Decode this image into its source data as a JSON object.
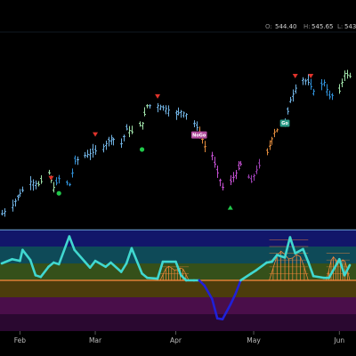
{
  "colors": {
    "background": "#000000",
    "separator": "#1e2a36",
    "bar_up_strong": "#2f8fd6",
    "bar_up": "#6fb0e0",
    "bar_neutral": "#9fe0a8",
    "bar_hot": "#e08a3c",
    "bar_down": "#9a3fb0",
    "bar_down_strong": "#c24fd0",
    "signal_sell": "#e0332b",
    "signal_buy": "#20c84a",
    "tag_nogo": "#b04a9c",
    "tag_go": "#2a9a86",
    "osc_line": "#40d8d0",
    "osc_line_low": "#2020d8",
    "osc_zero": "#ff8a3c",
    "osc_cloud": "#ff8a3c",
    "osc_bands": [
      "#12166a",
      "#0e4a58",
      "#35501a",
      "#4c3c0c",
      "#4a0e4a",
      "#2a0830"
    ]
  },
  "ohlc": {
    "open_label": "O:",
    "open": "544.40",
    "high_label": "H:",
    "high": "545.65",
    "low_label": "L:",
    "low": "543"
  },
  "chart_data": [
    {
      "type": "ohlc",
      "x_axis": {
        "type": "date",
        "start": "2024-01-25",
        "end": "2024-06-07",
        "tick_labels": [
          "Feb",
          "Mar",
          "Apr",
          "May",
          "Jun"
        ],
        "tick_dates": [
          "2024-02-01",
          "2024-03-01",
          "2024-04-01",
          "2024-05-01",
          "2024-06-03"
        ]
      },
      "price_range": [
        488,
        552
      ],
      "close_path": [
        [
          "2024-01-25",
          491
        ],
        [
          "2024-01-29",
          494
        ],
        [
          "2024-02-01",
          498
        ],
        [
          "2024-02-05",
          502
        ],
        [
          "2024-02-08",
          501
        ],
        [
          "2024-02-12",
          505
        ],
        [
          "2024-02-14",
          500
        ],
        [
          "2024-02-16",
          503
        ],
        [
          "2024-02-20",
          501
        ],
        [
          "2024-02-22",
          509
        ],
        [
          "2024-02-26",
          511
        ],
        [
          "2024-02-29",
          512
        ],
        [
          "2024-03-04",
          514
        ],
        [
          "2024-03-07",
          517
        ],
        [
          "2024-03-11",
          515
        ],
        [
          "2024-03-13",
          520
        ],
        [
          "2024-03-15",
          519
        ],
        [
          "2024-03-19",
          522
        ],
        [
          "2024-03-21",
          528
        ],
        [
          "2024-03-25",
          528
        ],
        [
          "2024-03-28",
          527
        ],
        [
          "2024-04-01",
          525
        ],
        [
          "2024-04-03",
          526
        ],
        [
          "2024-04-05",
          525
        ],
        [
          "2024-04-08",
          522
        ],
        [
          "2024-04-10",
          519
        ],
        [
          "2024-04-12",
          514
        ],
        [
          "2024-04-15",
          511
        ],
        [
          "2024-04-17",
          505
        ],
        [
          "2024-04-19",
          500
        ],
        [
          "2024-04-22",
          502
        ],
        [
          "2024-04-24",
          505
        ],
        [
          "2024-04-26",
          508
        ],
        [
          "2024-04-30",
          502
        ],
        [
          "2024-05-02",
          506
        ],
        [
          "2024-05-06",
          512
        ],
        [
          "2024-05-09",
          519
        ],
        [
          "2024-05-13",
          522
        ],
        [
          "2024-05-15",
          530
        ],
        [
          "2024-05-17",
          534
        ],
        [
          "2024-05-20",
          537
        ],
        [
          "2024-05-22",
          536
        ],
        [
          "2024-05-24",
          533
        ],
        [
          "2024-05-28",
          536
        ],
        [
          "2024-05-30",
          531
        ],
        [
          "2024-06-03",
          533
        ],
        [
          "2024-06-05",
          539
        ],
        [
          "2024-06-07",
          538
        ]
      ],
      "regime_segments": [
        {
          "from": "2024-01-25",
          "to": "2024-02-06",
          "regime": "up"
        },
        {
          "from": "2024-02-07",
          "to": "2024-02-13",
          "regime": "neutral"
        },
        {
          "from": "2024-02-14",
          "to": "2024-02-21",
          "regime": "up_strong"
        },
        {
          "from": "2024-02-22",
          "to": "2024-03-12",
          "regime": "up"
        },
        {
          "from": "2024-03-13",
          "to": "2024-03-20",
          "regime": "neutral"
        },
        {
          "from": "2024-03-21",
          "to": "2024-04-08",
          "regime": "up"
        },
        {
          "from": "2024-04-09",
          "to": "2024-04-12",
          "regime": "hot"
        },
        {
          "from": "2024-04-15",
          "to": "2024-04-26",
          "regime": "down_strong"
        },
        {
          "from": "2024-04-29",
          "to": "2024-05-03",
          "regime": "down"
        },
        {
          "from": "2024-05-06",
          "to": "2024-05-10",
          "regime": "hot"
        },
        {
          "from": "2024-05-13",
          "to": "2024-05-21",
          "regime": "up"
        },
        {
          "from": "2024-05-22",
          "to": "2024-05-31",
          "regime": "up_strong"
        },
        {
          "from": "2024-06-03",
          "to": "2024-06-07",
          "regime": "neutral"
        }
      ],
      "sell_signals": [
        [
          "2024-02-13",
          503
        ],
        [
          "2024-03-01",
          518
        ],
        [
          "2024-03-25",
          531
        ],
        [
          "2024-05-17",
          538
        ],
        [
          "2024-05-23",
          538
        ]
      ],
      "buy_signals": [
        [
          "2024-02-16",
          498
        ],
        [
          "2024-03-19",
          513
        ],
        [
          "2024-04-22",
          493
        ]
      ],
      "tags": [
        {
          "text": "NoGo",
          "date": "2024-04-10",
          "price": 518,
          "kind": "nogo"
        },
        {
          "text": "Go",
          "date": "2024-05-13",
          "price": 522,
          "kind": "go"
        }
      ]
    },
    {
      "type": "oscillator",
      "y_range": [
        -6,
        6
      ],
      "zero": 0,
      "bands": [
        6,
        4,
        2,
        0,
        -2,
        -4,
        -6
      ],
      "series": [
        [
          "2024-01-25",
          2.0
        ],
        [
          "2024-01-29",
          2.5
        ],
        [
          "2024-02-01",
          2.3
        ],
        [
          "2024-02-02",
          3.6
        ],
        [
          "2024-02-05",
          2.4
        ],
        [
          "2024-02-07",
          0.6
        ],
        [
          "2024-02-09",
          0.4
        ],
        [
          "2024-02-12",
          1.6
        ],
        [
          "2024-02-14",
          2.1
        ],
        [
          "2024-02-16",
          1.9
        ],
        [
          "2024-02-20",
          5.2
        ],
        [
          "2024-02-22",
          3.6
        ],
        [
          "2024-02-26",
          2.2
        ],
        [
          "2024-02-28",
          1.5
        ],
        [
          "2024-03-01",
          2.3
        ],
        [
          "2024-03-05",
          1.6
        ],
        [
          "2024-03-07",
          2.1
        ],
        [
          "2024-03-11",
          1.0
        ],
        [
          "2024-03-13",
          2.0
        ],
        [
          "2024-03-15",
          3.8
        ],
        [
          "2024-03-19",
          0.8
        ],
        [
          "2024-03-21",
          0.3
        ],
        [
          "2024-03-25",
          0.2
        ],
        [
          "2024-03-27",
          2.2
        ],
        [
          "2024-04-01",
          2.2
        ],
        [
          "2024-04-03",
          0.6
        ],
        [
          "2024-04-05",
          0.0
        ],
        [
          "2024-04-08",
          0.0
        ],
        [
          "2024-04-10",
          0.0
        ],
        [
          "2024-04-12",
          -0.6
        ],
        [
          "2024-04-15",
          -2.2
        ],
        [
          "2024-04-17",
          -4.5
        ],
        [
          "2024-04-19",
          -4.6
        ],
        [
          "2024-04-22",
          -2.9
        ],
        [
          "2024-04-24",
          -1.6
        ],
        [
          "2024-04-26",
          0.0
        ],
        [
          "2024-04-30",
          0.8
        ],
        [
          "2024-05-02",
          1.2
        ],
        [
          "2024-05-06",
          2.1
        ],
        [
          "2024-05-08",
          2.2
        ],
        [
          "2024-05-10",
          3.0
        ],
        [
          "2024-05-13",
          2.7
        ],
        [
          "2024-05-15",
          5.1
        ],
        [
          "2024-05-17",
          3.2
        ],
        [
          "2024-05-20",
          3.7
        ],
        [
          "2024-05-22",
          2.2
        ],
        [
          "2024-05-24",
          0.5
        ],
        [
          "2024-05-28",
          0.3
        ],
        [
          "2024-05-30",
          0.3
        ],
        [
          "2024-06-03",
          2.5
        ],
        [
          "2024-06-05",
          0.6
        ],
        [
          "2024-06-07",
          1.8
        ]
      ],
      "cloud_spans": [
        {
          "from": "2024-03-26",
          "to": "2024-04-06",
          "peak": 2.4
        },
        {
          "from": "2024-05-07",
          "to": "2024-05-22",
          "peak": 5.0
        },
        {
          "from": "2024-05-29",
          "to": "2024-06-07",
          "peak": 4.0
        }
      ]
    }
  ]
}
